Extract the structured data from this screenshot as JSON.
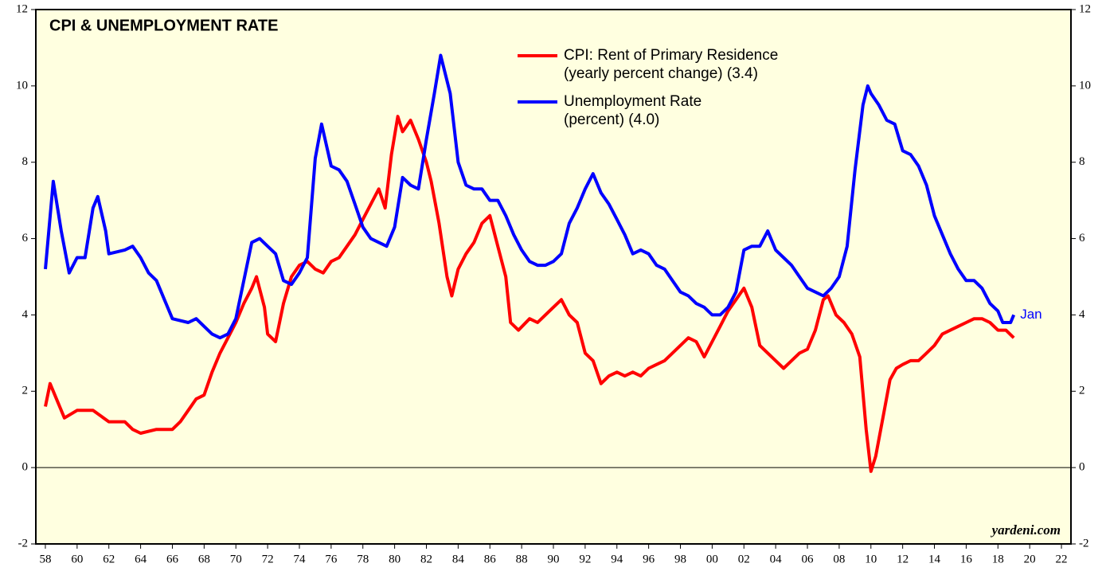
{
  "chart_data": {
    "type": "line",
    "title": "CPI & UNEMPLOYMENT RATE",
    "annotation": "Jan",
    "source": "yardeni.com",
    "xlim": [
      1957.4,
      2022.6
    ],
    "ylim": [
      -2,
      12
    ],
    "yticks": [
      -2,
      0,
      2,
      4,
      6,
      8,
      10,
      12
    ],
    "xticks": [
      {
        "value": 1958,
        "label": "58"
      },
      {
        "value": 1960,
        "label": "60"
      },
      {
        "value": 1962,
        "label": "62"
      },
      {
        "value": 1964,
        "label": "64"
      },
      {
        "value": 1966,
        "label": "66"
      },
      {
        "value": 1968,
        "label": "68"
      },
      {
        "value": 1970,
        "label": "70"
      },
      {
        "value": 1972,
        "label": "72"
      },
      {
        "value": 1974,
        "label": "74"
      },
      {
        "value": 1976,
        "label": "76"
      },
      {
        "value": 1978,
        "label": "78"
      },
      {
        "value": 1980,
        "label": "80"
      },
      {
        "value": 1982,
        "label": "82"
      },
      {
        "value": 1984,
        "label": "84"
      },
      {
        "value": 1986,
        "label": "86"
      },
      {
        "value": 1988,
        "label": "88"
      },
      {
        "value": 1990,
        "label": "90"
      },
      {
        "value": 1992,
        "label": "92"
      },
      {
        "value": 1994,
        "label": "94"
      },
      {
        "value": 1996,
        "label": "96"
      },
      {
        "value": 1998,
        "label": "98"
      },
      {
        "value": 2000,
        "label": "00"
      },
      {
        "value": 2002,
        "label": "02"
      },
      {
        "value": 2004,
        "label": "04"
      },
      {
        "value": 2006,
        "label": "06"
      },
      {
        "value": 2008,
        "label": "08"
      },
      {
        "value": 2010,
        "label": "10"
      },
      {
        "value": 2012,
        "label": "12"
      },
      {
        "value": 2014,
        "label": "14"
      },
      {
        "value": 2016,
        "label": "16"
      },
      {
        "value": 2018,
        "label": "18"
      },
      {
        "value": 2020,
        "label": "20"
      },
      {
        "value": 2022,
        "label": "22"
      }
    ],
    "series": [
      {
        "name": [
          "CPI: Rent of Primary Residence",
          "(yearly percent change) (3.4)"
        ],
        "color": "#ff0000",
        "x": [
          1958,
          1958.3,
          1958.8,
          1959.2,
          1960,
          1961,
          1962,
          1963,
          1963.5,
          1964,
          1965,
          1966,
          1966.5,
          1967,
          1967.5,
          1968,
          1968.5,
          1969,
          1969.5,
          1970,
          1970.5,
          1971,
          1971.3,
          1971.8,
          1972,
          1972.5,
          1973,
          1973.5,
          1974,
          1974.5,
          1975,
          1975.5,
          1976,
          1976.5,
          1977,
          1977.5,
          1978,
          1978.5,
          1979,
          1979.4,
          1979.8,
          1980.2,
          1980.5,
          1981,
          1981.5,
          1982,
          1982.3,
          1982.8,
          1983.3,
          1983.6,
          1984,
          1984.5,
          1985,
          1985.5,
          1986,
          1986.5,
          1987,
          1987.3,
          1987.8,
          1988.5,
          1989,
          1989.5,
          1990,
          1990.5,
          1991,
          1991.5,
          1992,
          1992.5,
          1993,
          1993.5,
          1994,
          1994.5,
          1995,
          1995.5,
          1996,
          1996.5,
          1997,
          1997.5,
          1998,
          1998.5,
          1999,
          1999.5,
          2000,
          2000.5,
          2001,
          2001.5,
          2002,
          2002.5,
          2003,
          2003.5,
          2004,
          2004.5,
          2005,
          2005.5,
          2006,
          2006.5,
          2007,
          2007.3,
          2007.8,
          2008.3,
          2008.8,
          2009.3,
          2009.7,
          2010,
          2010.3,
          2010.8,
          2011.2,
          2011.6,
          2012,
          2012.5,
          2013,
          2013.5,
          2014,
          2014.5,
          2015,
          2015.5,
          2016,
          2016.5,
          2017,
          2017.5,
          2018,
          2018.5,
          2019
        ],
        "values": [
          1.6,
          2.2,
          1.7,
          1.3,
          1.5,
          1.5,
          1.2,
          1.2,
          1.0,
          0.9,
          1.0,
          1.0,
          1.2,
          1.5,
          1.8,
          1.9,
          2.5,
          3.0,
          3.4,
          3.8,
          4.3,
          4.7,
          5.0,
          4.2,
          3.5,
          3.3,
          4.3,
          5.0,
          5.3,
          5.4,
          5.2,
          5.1,
          5.4,
          5.5,
          5.8,
          6.1,
          6.5,
          6.9,
          7.3,
          6.8,
          8.2,
          9.2,
          8.8,
          9.1,
          8.6,
          8.0,
          7.5,
          6.4,
          5.0,
          4.5,
          5.2,
          5.6,
          5.9,
          6.4,
          6.6,
          5.8,
          5.0,
          3.8,
          3.6,
          3.9,
          3.8,
          4.0,
          4.2,
          4.4,
          4.0,
          3.8,
          3.0,
          2.8,
          2.2,
          2.4,
          2.5,
          2.4,
          2.5,
          2.4,
          2.6,
          2.7,
          2.8,
          3.0,
          3.2,
          3.4,
          3.3,
          2.9,
          3.3,
          3.7,
          4.1,
          4.4,
          4.7,
          4.2,
          3.2,
          3.0,
          2.8,
          2.6,
          2.8,
          3.0,
          3.1,
          3.6,
          4.4,
          4.5,
          4.0,
          3.8,
          3.5,
          2.9,
          1.0,
          -0.1,
          0.3,
          1.4,
          2.3,
          2.6,
          2.7,
          2.8,
          2.8,
          3.0,
          3.2,
          3.5,
          3.6,
          3.7,
          3.8,
          3.9,
          3.9,
          3.8,
          3.6,
          3.6,
          3.4
        ]
      },
      {
        "name": [
          "Unemployment Rate",
          "(percent) (4.0)"
        ],
        "color": "#0000ff",
        "x": [
          1958,
          1958.5,
          1959,
          1959.5,
          1960,
          1960.5,
          1961,
          1961.3,
          1961.8,
          1962,
          1963,
          1963.5,
          1964,
          1964.5,
          1965,
          1965.5,
          1966,
          1967,
          1967.5,
          1968,
          1968.5,
          1969,
          1969.5,
          1970,
          1970.5,
          1971,
          1971.5,
          1972,
          1972.5,
          1973,
          1973.5,
          1974,
          1974.5,
          1975,
          1975.4,
          1976,
          1976.5,
          1977,
          1977.5,
          1978,
          1978.5,
          1979,
          1979.5,
          1980,
          1980.5,
          1981,
          1981.5,
          1982,
          1982.5,
          1982.9,
          1983.5,
          1984,
          1984.5,
          1985,
          1985.5,
          1986,
          1986.5,
          1987,
          1987.5,
          1988,
          1988.5,
          1989,
          1989.5,
          1990,
          1990.5,
          1991,
          1991.5,
          1992,
          1992.5,
          1993,
          1993.5,
          1994,
          1994.5,
          1995,
          1995.5,
          1996,
          1996.5,
          1997,
          1997.5,
          1998,
          1998.5,
          1999,
          1999.5,
          2000,
          2000.5,
          2001,
          2001.5,
          2002,
          2002.5,
          2003,
          2003.5,
          2004,
          2004.5,
          2005,
          2005.5,
          2006,
          2006.5,
          2007,
          2007.5,
          2008,
          2008.5,
          2009,
          2009.5,
          2009.8,
          2010,
          2010.5,
          2011,
          2011.5,
          2012,
          2012.5,
          2013,
          2013.5,
          2014,
          2014.5,
          2015,
          2015.5,
          2016,
          2016.5,
          2017,
          2017.5,
          2018,
          2018.3,
          2018.8,
          2019
        ],
        "values": [
          5.2,
          7.5,
          6.2,
          5.1,
          5.5,
          5.5,
          6.8,
          7.1,
          6.2,
          5.6,
          5.7,
          5.8,
          5.5,
          5.1,
          4.9,
          4.4,
          3.9,
          3.8,
          3.9,
          3.7,
          3.5,
          3.4,
          3.5,
          3.9,
          4.9,
          5.9,
          6.0,
          5.8,
          5.6,
          4.9,
          4.8,
          5.1,
          5.5,
          8.1,
          9.0,
          7.9,
          7.8,
          7.5,
          6.9,
          6.3,
          6.0,
          5.9,
          5.8,
          6.3,
          7.6,
          7.4,
          7.3,
          8.6,
          9.8,
          10.8,
          9.8,
          8.0,
          7.4,
          7.3,
          7.3,
          7.0,
          7.0,
          6.6,
          6.1,
          5.7,
          5.4,
          5.3,
          5.3,
          5.4,
          5.6,
          6.4,
          6.8,
          7.3,
          7.7,
          7.2,
          6.9,
          6.5,
          6.1,
          5.6,
          5.7,
          5.6,
          5.3,
          5.2,
          4.9,
          4.6,
          4.5,
          4.3,
          4.2,
          4.0,
          4.0,
          4.2,
          4.6,
          5.7,
          5.8,
          5.8,
          6.2,
          5.7,
          5.5,
          5.3,
          5.0,
          4.7,
          4.6,
          4.5,
          4.7,
          5.0,
          5.8,
          7.8,
          9.5,
          10.0,
          9.8,
          9.5,
          9.1,
          9.0,
          8.3,
          8.2,
          7.9,
          7.4,
          6.6,
          6.1,
          5.6,
          5.2,
          4.9,
          4.9,
          4.7,
          4.3,
          4.1,
          3.8,
          3.8,
          4.0
        ]
      }
    ]
  }
}
